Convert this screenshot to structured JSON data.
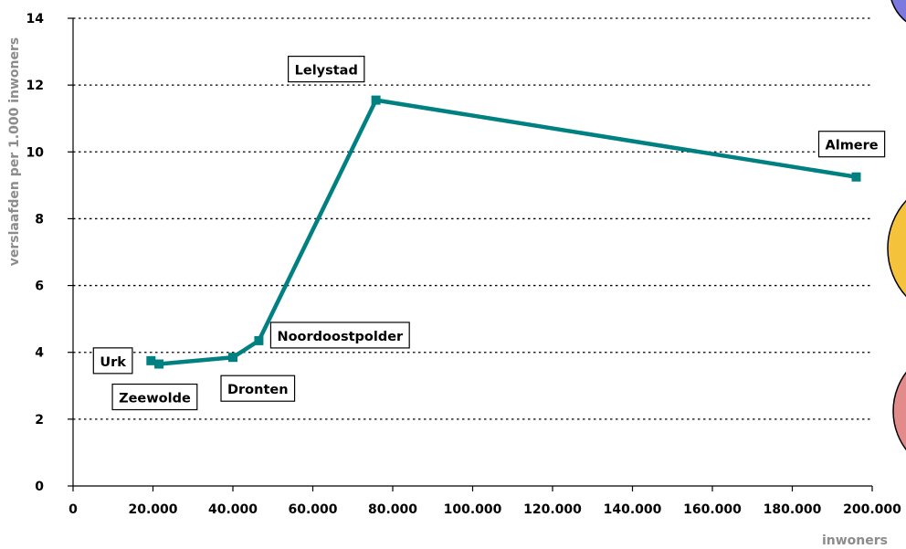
{
  "chart_data": {
    "type": "line",
    "xlabel": "inwoners",
    "ylabel": "verslaafden per 1.000 inwoners",
    "xlim": [
      0,
      200000
    ],
    "ylim": [
      0,
      14
    ],
    "x_ticks": [
      "0",
      "20.000",
      "40.000",
      "60.000",
      "80.000",
      "100.000",
      "120.000",
      "140.000",
      "160.000",
      "180.000",
      "200.000"
    ],
    "y_ticks": [
      "0",
      "2",
      "4",
      "6",
      "8",
      "10",
      "12",
      "14"
    ],
    "grid": true,
    "series": [
      {
        "color": "#008080",
        "points": [
          {
            "label": "Urk",
            "x": 19500,
            "y": 3.75
          },
          {
            "label": "Zeewolde",
            "x": 21500,
            "y": 3.65
          },
          {
            "label": "Dronten",
            "x": 40000,
            "y": 3.85
          },
          {
            "label": "Noordoostpolder",
            "x": 46500,
            "y": 4.35
          },
          {
            "label": "Lelystad",
            "x": 75800,
            "y": 11.55
          },
          {
            "label": "Almere",
            "x": 196000,
            "y": 9.25
          }
        ]
      }
    ]
  },
  "decor": {
    "circles": [
      {
        "color": "#7b78e0"
      },
      {
        "color": "#f5c33b"
      },
      {
        "color": "#e38a8a"
      }
    ]
  }
}
